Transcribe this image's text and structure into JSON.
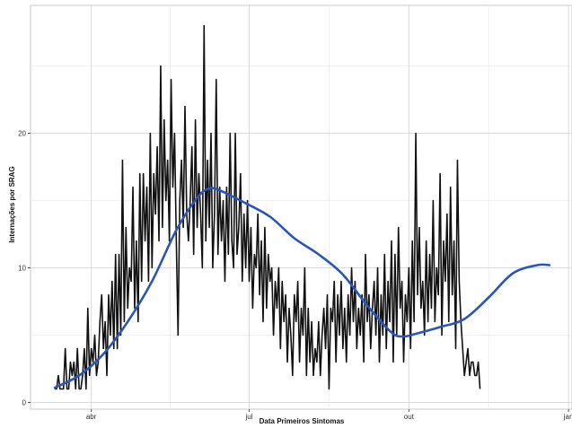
{
  "chart_data": {
    "type": "line",
    "title": "",
    "xlabel": "Data Primeiros Sintomas",
    "ylabel": "Internações por SRAG",
    "x_range": [
      "2020-02-26",
      "2021-01-03"
    ],
    "ylim": [
      -0.5,
      29.5
    ],
    "grid": true,
    "legend": "none",
    "x_ticks": [
      {
        "date": "2020-04-01",
        "label": "abr"
      },
      {
        "date": "2020-07-01",
        "label": "jul"
      },
      {
        "date": "2020-10-01",
        "label": "out"
      },
      {
        "date": "2021-01-01",
        "label": "jan"
      }
    ],
    "y_ticks": [
      {
        "value": 0,
        "label": "0"
      },
      {
        "value": 10,
        "label": "10"
      },
      {
        "value": 20,
        "label": "20"
      }
    ],
    "series": [
      {
        "role": "daily",
        "color": "#111111",
        "start_date": "2020-03-11",
        "values": [
          1,
          1,
          2,
          1,
          1,
          1,
          4,
          1,
          1,
          3,
          2,
          3,
          1,
          4,
          1,
          1,
          2,
          4,
          1,
          7,
          2,
          4,
          3,
          5,
          2,
          3,
          6,
          8,
          4,
          6,
          2,
          8,
          5,
          9,
          4,
          11,
          4,
          11,
          5,
          18,
          6,
          13,
          7,
          10,
          9,
          16,
          7,
          12,
          6,
          17,
          9,
          17,
          12,
          16,
          9,
          20,
          10,
          17,
          14,
          19,
          12,
          25,
          13,
          21,
          15,
          18,
          12,
          24,
          16,
          20,
          12,
          5,
          15,
          18,
          13,
          22,
          14,
          12,
          15,
          19,
          11,
          21,
          13,
          17,
          14,
          10,
          28,
          12,
          18,
          13,
          20,
          10,
          14,
          24,
          11,
          16,
          12,
          15,
          9,
          16,
          11,
          20,
          12,
          10,
          20,
          11,
          13,
          17,
          9,
          14,
          10,
          15,
          9,
          13,
          7,
          11,
          10,
          14,
          8,
          12,
          6,
          13,
          7,
          11,
          9,
          10,
          5,
          9,
          7,
          10,
          4,
          9,
          6,
          8,
          3,
          7,
          5,
          2,
          8,
          6,
          9,
          3,
          7,
          5,
          10,
          2,
          7,
          3,
          6,
          2,
          4,
          3,
          6,
          2,
          5,
          7,
          4,
          8,
          1,
          7,
          6,
          9,
          3,
          8,
          5,
          9,
          4,
          7,
          3,
          8,
          5,
          10,
          6,
          9,
          4,
          7,
          5,
          8,
          3,
          11,
          6,
          8,
          4,
          7,
          9,
          5,
          10,
          3,
          8,
          5,
          11,
          4,
          9,
          6,
          12,
          3,
          11,
          5,
          13,
          7,
          9,
          3,
          8,
          6,
          10,
          4,
          12,
          6,
          20,
          8,
          13,
          7,
          9,
          5,
          12,
          6,
          11,
          7,
          15,
          6,
          10,
          8,
          17,
          5,
          12,
          9,
          14,
          6,
          16,
          8,
          12,
          4,
          18,
          9,
          6,
          4,
          2,
          3,
          4,
          2,
          3,
          3,
          2,
          2,
          3,
          1
        ]
      },
      {
        "role": "smoothed",
        "color": "#2956b8",
        "points": [
          {
            "date": "2020-03-11",
            "y": 1.1
          },
          {
            "date": "2020-03-25",
            "y": 2.0
          },
          {
            "date": "2020-04-08",
            "y": 3.6
          },
          {
            "date": "2020-04-22",
            "y": 6.0
          },
          {
            "date": "2020-05-06",
            "y": 9.0
          },
          {
            "date": "2020-05-20",
            "y": 12.8
          },
          {
            "date": "2020-06-01",
            "y": 15.2
          },
          {
            "date": "2020-06-08",
            "y": 15.9
          },
          {
            "date": "2020-06-15",
            "y": 15.7
          },
          {
            "date": "2020-06-29",
            "y": 14.8
          },
          {
            "date": "2020-07-13",
            "y": 13.8
          },
          {
            "date": "2020-07-27",
            "y": 12.2
          },
          {
            "date": "2020-08-10",
            "y": 11.0
          },
          {
            "date": "2020-08-24",
            "y": 9.5
          },
          {
            "date": "2020-09-07",
            "y": 7.2
          },
          {
            "date": "2020-09-21",
            "y": 5.2
          },
          {
            "date": "2020-09-28",
            "y": 4.9
          },
          {
            "date": "2020-10-05",
            "y": 5.1
          },
          {
            "date": "2020-10-19",
            "y": 5.6
          },
          {
            "date": "2020-11-02",
            "y": 6.2
          },
          {
            "date": "2020-11-16",
            "y": 7.8
          },
          {
            "date": "2020-11-30",
            "y": 9.6
          },
          {
            "date": "2020-12-14",
            "y": 10.2
          },
          {
            "date": "2020-12-21",
            "y": 10.2
          }
        ]
      }
    ]
  }
}
